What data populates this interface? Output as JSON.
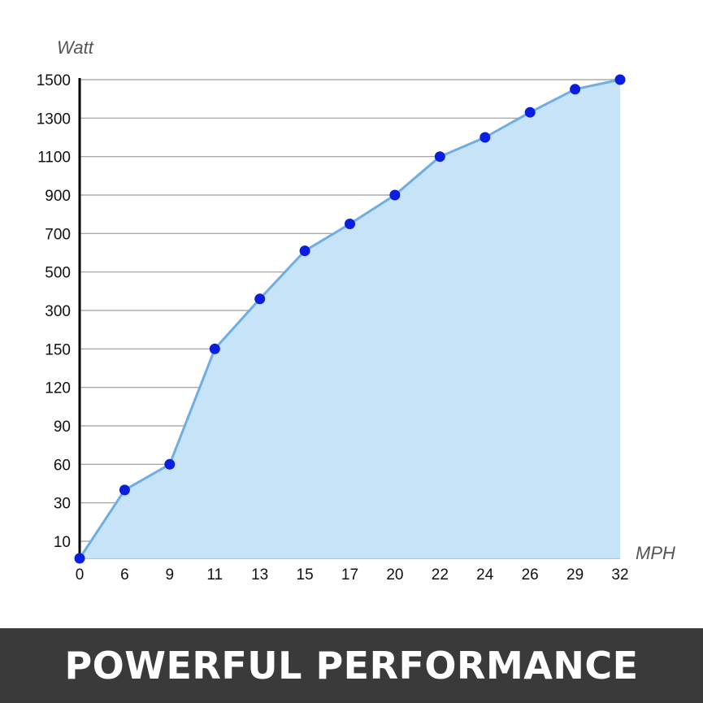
{
  "banner": {
    "text": "POWERFUL PERFORMANCE"
  },
  "chart_data": {
    "type": "area",
    "xlabel": "MPH",
    "ylabel": "Watt",
    "x_ticks": [
      "0",
      "6",
      "9",
      "11",
      "13",
      "15",
      "17",
      "20",
      "22",
      "24",
      "26",
      "29",
      "32"
    ],
    "y_ticks": [
      "10",
      "30",
      "60",
      "90",
      "120",
      "150",
      "300",
      "500",
      "700",
      "900",
      "1100",
      "1300",
      "1500"
    ],
    "x": [
      0,
      6,
      9,
      11,
      13,
      15,
      17,
      20,
      22,
      24,
      26,
      29,
      32
    ],
    "y": [
      0,
      40,
      60,
      150,
      360,
      610,
      750,
      900,
      1100,
      1200,
      1330,
      1450,
      1500
    ],
    "grid": true,
    "colors": {
      "line": "#6faee3",
      "fill": "#c6e3f8",
      "point": "#0a1ee0",
      "grid": "#9a9a9a",
      "axis": "#000000"
    }
  }
}
